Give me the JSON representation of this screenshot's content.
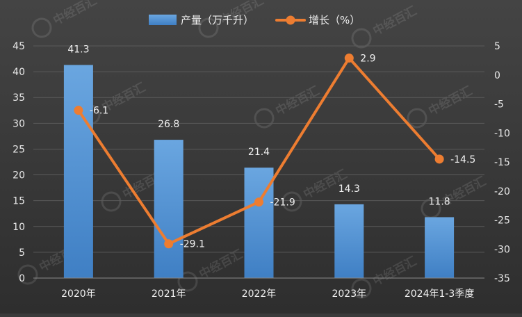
{
  "chart_data": {
    "type": "bar",
    "title": "",
    "xlabel": "",
    "ylabel": "",
    "categories": [
      "2020年",
      "2021年",
      "2022年",
      "2023年",
      "2024年1-3季度"
    ],
    "series": [
      {
        "name": "产量（万千升）",
        "type": "bar",
        "axis": "left",
        "color": "#5b9bd5",
        "values": [
          41.3,
          26.8,
          21.4,
          14.3,
          11.8
        ]
      },
      {
        "name": "增长（%）",
        "type": "line",
        "axis": "right",
        "color": "#ed7d31",
        "values": [
          -6.1,
          -29.1,
          -21.9,
          2.9,
          -14.5
        ]
      }
    ],
    "y_left": {
      "min": 0,
      "max": 45,
      "step": 5
    },
    "y_right": {
      "min": -35,
      "max": 5,
      "step": 5
    },
    "grid": true,
    "legend": "top-center",
    "watermark": "中经百汇"
  }
}
